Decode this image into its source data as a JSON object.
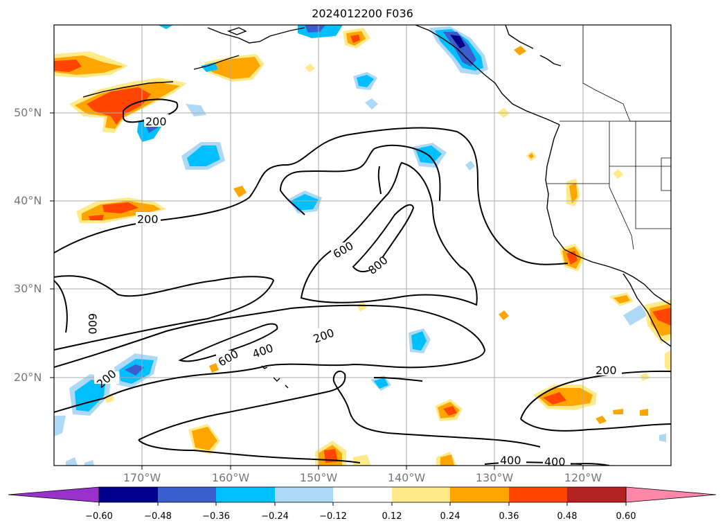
{
  "title": "2024012200 F036",
  "map": {
    "lat_labels": [
      "50°N",
      "40°N",
      "30°N",
      "20°N"
    ],
    "lon_labels": [
      "170°W",
      "160°W",
      "150°W",
      "140°W",
      "130°W",
      "120°W"
    ],
    "contour_labels": [
      "200",
      "200",
      "600",
      "800",
      "600",
      "200",
      "600",
      "400",
      "200",
      "200",
      "400",
      "400"
    ]
  },
  "colorbar": {
    "tick_labels": [
      "−0.60",
      "−0.48",
      "−0.36",
      "−0.24",
      "−0.12",
      "0.12",
      "0.24",
      "0.36",
      "0.48",
      "0.60"
    ],
    "colors": [
      "#9932cc",
      "#00008b",
      "#3a5fcd",
      "#00bfff",
      "#add8f6",
      "#ffffff",
      "#ffea8a",
      "#ffa500",
      "#ff4500",
      "#b22222",
      "#ff88aa"
    ]
  },
  "colors": {
    "contour": "#000000",
    "grid": "#aaaaaa",
    "coast": "#000000"
  }
}
